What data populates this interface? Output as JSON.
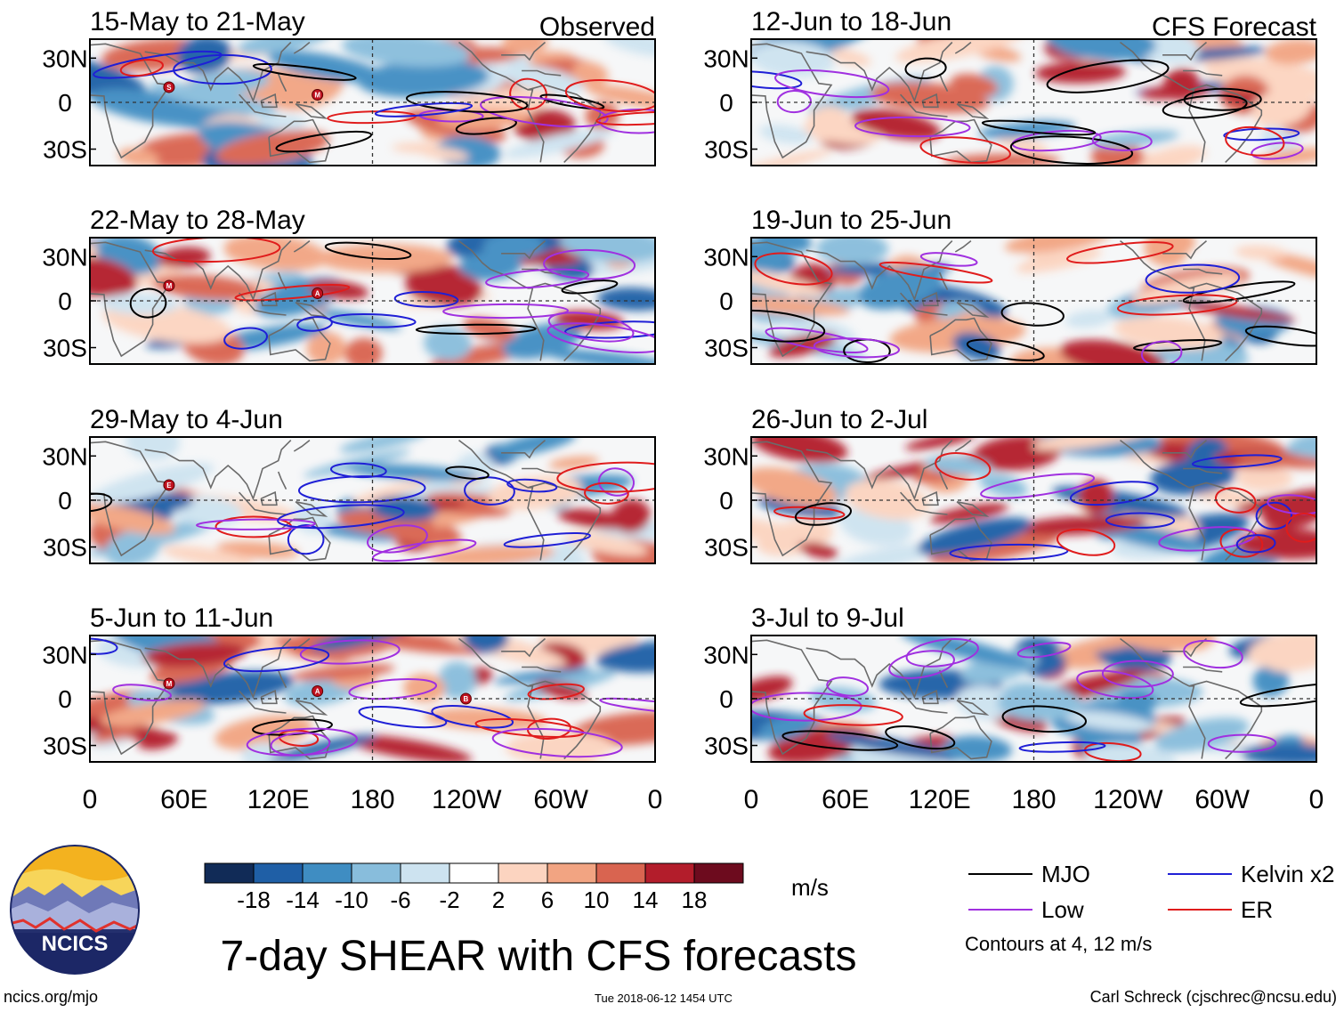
{
  "title": "7-day SHEAR with CFS forecasts",
  "units": "m/s",
  "observed_label": "Observed",
  "forecast_label": "CFS Forecast",
  "footer": {
    "url": "ncics.org/mjo",
    "timestamp": "Tue 2018-06-12 1454 UTC",
    "author": "Carl Schreck (cjschrec@ncsu.edu)"
  },
  "logo_text": "NCICS",
  "legend": {
    "items": [
      {
        "label": "MJO",
        "color": "#000000"
      },
      {
        "label": "Kelvin x2",
        "color": "#1f1fd6"
      },
      {
        "label": "Low",
        "color": "#a030e0"
      },
      {
        "label": "ER",
        "color": "#e01c1c"
      }
    ],
    "contour_note": "Contours at 4, 12 m/s"
  },
  "colorbar": {
    "colors": [
      "#112b57",
      "#1f5fa6",
      "#3f8dc2",
      "#88bddc",
      "#cde3f0",
      "#ffffff",
      "#fcd4c0",
      "#f2a482",
      "#d96450",
      "#b31d2b",
      "#6d0b1e"
    ],
    "tick_labels": [
      "-18",
      "-14",
      "-10",
      "-6",
      "-2",
      "2",
      "6",
      "10",
      "14",
      "18"
    ]
  },
  "chart_data": {
    "type": "heatmap",
    "variable": "vertical wind shear anomaly (m/s)",
    "y_tick_labels": [
      "30N",
      "0",
      "30S"
    ],
    "x_tick_labels": [
      "0",
      "60E",
      "120E",
      "180",
      "120W",
      "60W",
      "0"
    ],
    "panels": [
      {
        "period": "15-May to 21-May",
        "column": "Observed",
        "storm_markers": [
          {
            "id": "S"
          },
          {
            "id": "M"
          }
        ]
      },
      {
        "period": "22-May to 28-May",
        "column": "Observed",
        "storm_markers": [
          {
            "id": "M"
          },
          {
            "id": "A"
          }
        ]
      },
      {
        "period": "29-May to 4-Jun",
        "column": "Observed",
        "storm_markers": [
          {
            "id": "E"
          }
        ]
      },
      {
        "period": "5-Jun to 11-Jun",
        "column": "Observed",
        "storm_markers": [
          {
            "id": "M"
          },
          {
            "id": "A"
          },
          {
            "id": "B"
          }
        ]
      },
      {
        "period": "12-Jun to 18-Jun",
        "column": "CFS Forecast",
        "storm_markers": []
      },
      {
        "period": "19-Jun to 25-Jun",
        "column": "CFS Forecast",
        "storm_markers": []
      },
      {
        "period": "26-Jun to 2-Jul",
        "column": "CFS Forecast",
        "storm_markers": []
      },
      {
        "period": "3-Jul to 9-Jul",
        "column": "CFS Forecast",
        "storm_markers": []
      }
    ]
  }
}
